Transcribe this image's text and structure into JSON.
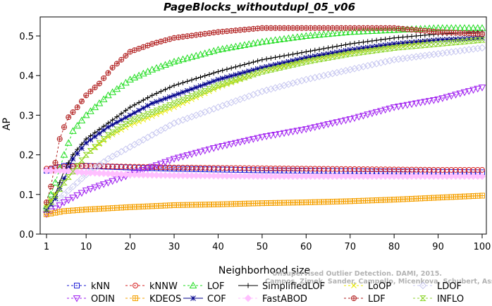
{
  "chart_data": {
    "type": "line",
    "title": "PageBlocks_withoutdupl_05_v06",
    "xlabel": "Neighborhood size",
    "ylabel": "AP",
    "xlim": [
      1,
      100
    ],
    "ylim": [
      0.0,
      0.55
    ],
    "xticks": [
      1,
      10,
      20,
      30,
      40,
      50,
      60,
      70,
      80,
      90,
      100
    ],
    "yticks": [
      0.0,
      0.1,
      0.2,
      0.3,
      0.4,
      0.5
    ],
    "grid": false,
    "legend_position": "bottom",
    "watermark": {
      "line1": "Unsupervised Outlier Detection. DAMI, 2015.",
      "line2": "Campos, Zimek, Sander, Campello, Micenkova, Schubert, Assent, Houle"
    },
    "series": [
      {
        "name": "kNN",
        "color": "#1f1fd6",
        "marker": "square",
        "line": "dashed",
        "points": [
          [
            1,
            0.16
          ],
          [
            5,
            0.172
          ],
          [
            10,
            0.172
          ],
          [
            20,
            0.168
          ],
          [
            30,
            0.165
          ],
          [
            40,
            0.163
          ],
          [
            50,
            0.161
          ],
          [
            60,
            0.16
          ],
          [
            70,
            0.159
          ],
          [
            80,
            0.158
          ],
          [
            90,
            0.157
          ],
          [
            100,
            0.156
          ]
        ]
      },
      {
        "name": "kNNW",
        "color": "#d62020",
        "marker": "circle",
        "line": "dashed",
        "points": [
          [
            1,
            0.165
          ],
          [
            5,
            0.17
          ],
          [
            10,
            0.172
          ],
          [
            20,
            0.17
          ],
          [
            30,
            0.168
          ],
          [
            40,
            0.167
          ],
          [
            50,
            0.166
          ],
          [
            60,
            0.165
          ],
          [
            70,
            0.164
          ],
          [
            80,
            0.163
          ],
          [
            90,
            0.162
          ],
          [
            100,
            0.162
          ]
        ]
      },
      {
        "name": "LOF",
        "color": "#22dd22",
        "marker": "triangle",
        "line": "dashed",
        "points": [
          [
            1,
            0.07
          ],
          [
            3,
            0.13
          ],
          [
            5,
            0.2
          ],
          [
            7,
            0.26
          ],
          [
            10,
            0.3
          ],
          [
            15,
            0.35
          ],
          [
            20,
            0.39
          ],
          [
            25,
            0.415
          ],
          [
            30,
            0.435
          ],
          [
            40,
            0.465
          ],
          [
            50,
            0.485
          ],
          [
            60,
            0.5
          ],
          [
            70,
            0.51
          ],
          [
            80,
            0.515
          ],
          [
            90,
            0.52
          ],
          [
            100,
            0.52
          ]
        ]
      },
      {
        "name": "SimplifiedLOF",
        "color": "#000000",
        "marker": "plus",
        "line": "solid",
        "points": [
          [
            1,
            0.07
          ],
          [
            3,
            0.1
          ],
          [
            5,
            0.16
          ],
          [
            7,
            0.2
          ],
          [
            10,
            0.24
          ],
          [
            15,
            0.28
          ],
          [
            20,
            0.32
          ],
          [
            25,
            0.35
          ],
          [
            30,
            0.375
          ],
          [
            40,
            0.41
          ],
          [
            50,
            0.44
          ],
          [
            60,
            0.46
          ],
          [
            70,
            0.48
          ],
          [
            80,
            0.495
          ],
          [
            90,
            0.505
          ],
          [
            100,
            0.51
          ]
        ]
      },
      {
        "name": "LoOP",
        "color": "#e8e800",
        "marker": "cross",
        "line": "dashed",
        "points": [
          [
            1,
            0.07
          ],
          [
            5,
            0.13
          ],
          [
            10,
            0.2
          ],
          [
            15,
            0.245
          ],
          [
            20,
            0.275
          ],
          [
            30,
            0.32
          ],
          [
            40,
            0.37
          ],
          [
            50,
            0.41
          ],
          [
            60,
            0.44
          ],
          [
            70,
            0.46
          ],
          [
            80,
            0.475
          ],
          [
            90,
            0.49
          ],
          [
            100,
            0.495
          ]
        ]
      },
      {
        "name": "LDOF",
        "color": "#c8c8f0",
        "marker": "diamond",
        "line": "dashed",
        "points": [
          [
            1,
            0.06
          ],
          [
            5,
            0.1
          ],
          [
            10,
            0.15
          ],
          [
            15,
            0.19
          ],
          [
            20,
            0.22
          ],
          [
            30,
            0.28
          ],
          [
            40,
            0.32
          ],
          [
            50,
            0.36
          ],
          [
            60,
            0.39
          ],
          [
            70,
            0.415
          ],
          [
            80,
            0.44
          ],
          [
            90,
            0.455
          ],
          [
            100,
            0.47
          ]
        ]
      },
      {
        "name": "ODIN",
        "color": "#a020f0",
        "marker": "triangle-down",
        "line": "dashed",
        "points": [
          [
            1,
            0.05
          ],
          [
            5,
            0.08
          ],
          [
            10,
            0.11
          ],
          [
            15,
            0.13
          ],
          [
            20,
            0.15
          ],
          [
            30,
            0.19
          ],
          [
            40,
            0.22
          ],
          [
            50,
            0.245
          ],
          [
            60,
            0.265
          ],
          [
            70,
            0.29
          ],
          [
            80,
            0.32
          ],
          [
            90,
            0.34
          ],
          [
            100,
            0.37
          ]
        ]
      },
      {
        "name": "KDEOS",
        "color": "#f5a000",
        "marker": "boxplus",
        "line": "dashed",
        "points": [
          [
            1,
            0.05
          ],
          [
            5,
            0.058
          ],
          [
            10,
            0.062
          ],
          [
            20,
            0.068
          ],
          [
            30,
            0.073
          ],
          [
            40,
            0.075
          ],
          [
            50,
            0.078
          ],
          [
            60,
            0.08
          ],
          [
            70,
            0.083
          ],
          [
            80,
            0.087
          ],
          [
            90,
            0.092
          ],
          [
            100,
            0.097
          ]
        ]
      },
      {
        "name": "COF",
        "color": "#00008b",
        "marker": "asterisk",
        "line": "solid",
        "points": [
          [
            1,
            0.06
          ],
          [
            3,
            0.09
          ],
          [
            5,
            0.14
          ],
          [
            7,
            0.19
          ],
          [
            10,
            0.23
          ],
          [
            15,
            0.27
          ],
          [
            20,
            0.3
          ],
          [
            25,
            0.33
          ],
          [
            30,
            0.35
          ],
          [
            40,
            0.39
          ],
          [
            50,
            0.42
          ],
          [
            60,
            0.445
          ],
          [
            70,
            0.465
          ],
          [
            80,
            0.48
          ],
          [
            90,
            0.49
          ],
          [
            100,
            0.495
          ]
        ]
      },
      {
        "name": "FastABOD",
        "color": "#ffc0ff",
        "marker": "diamond-filled",
        "line": "dashed",
        "points": [
          [
            1,
            0.16
          ],
          [
            5,
            0.16
          ],
          [
            10,
            0.155
          ],
          [
            20,
            0.15
          ],
          [
            30,
            0.148
          ],
          [
            40,
            0.147
          ],
          [
            50,
            0.146
          ],
          [
            60,
            0.146
          ],
          [
            70,
            0.146
          ],
          [
            80,
            0.146
          ],
          [
            90,
            0.146
          ],
          [
            100,
            0.146
          ]
        ]
      },
      {
        "name": "LDF",
        "color": "#b22222",
        "marker": "circleplus",
        "line": "dashed",
        "points": [
          [
            1,
            0.08
          ],
          [
            2,
            0.12
          ],
          [
            3,
            0.18
          ],
          [
            4,
            0.24
          ],
          [
            5,
            0.27
          ],
          [
            6,
            0.295
          ],
          [
            8,
            0.32
          ],
          [
            10,
            0.35
          ],
          [
            13,
            0.38
          ],
          [
            16,
            0.42
          ],
          [
            20,
            0.46
          ],
          [
            25,
            0.48
          ],
          [
            30,
            0.495
          ],
          [
            40,
            0.51
          ],
          [
            50,
            0.52
          ],
          [
            60,
            0.52
          ],
          [
            70,
            0.52
          ],
          [
            80,
            0.52
          ],
          [
            90,
            0.51
          ],
          [
            100,
            0.505
          ]
        ]
      },
      {
        "name": "INFLO",
        "color": "#8fd630",
        "marker": "hourglass",
        "line": "dashed",
        "points": [
          [
            1,
            0.065
          ],
          [
            5,
            0.13
          ],
          [
            10,
            0.2
          ],
          [
            15,
            0.25
          ],
          [
            20,
            0.285
          ],
          [
            30,
            0.33
          ],
          [
            40,
            0.375
          ],
          [
            50,
            0.41
          ],
          [
            60,
            0.435
          ],
          [
            70,
            0.455
          ],
          [
            80,
            0.47
          ],
          [
            90,
            0.48
          ],
          [
            100,
            0.49
          ]
        ]
      }
    ]
  }
}
